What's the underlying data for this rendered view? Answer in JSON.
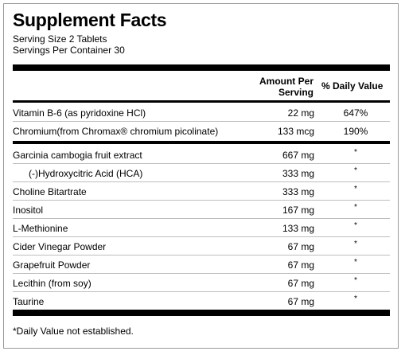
{
  "title": "Supplement Facts",
  "serving_size": "Serving Size 2 Tablets",
  "servings_per_container": "Servings Per Container 30",
  "columns": {
    "amount_line1": "Amount Per",
    "amount_line2": "Serving",
    "daily_value": "% Daily Value"
  },
  "rows": [
    {
      "name": "Vitamin B-6 (as pyridoxine HCl)",
      "amount": "22 mg",
      "dv": "647%"
    },
    {
      "name": "Chromium(from Chromax® chromium picolinate)",
      "amount": "133 mcg",
      "dv": "190%"
    },
    {
      "name": "Garcinia cambogia fruit extract",
      "amount": "667 mg",
      "dv": "*"
    },
    {
      "name": "(-)Hydroxycitric Acid (HCA)",
      "amount": "333 mg",
      "dv": "*"
    },
    {
      "name": "Choline Bitartrate",
      "amount": "333 mg",
      "dv": "*"
    },
    {
      "name": "Inositol",
      "amount": "167 mg",
      "dv": "*"
    },
    {
      "name": "L-Methionine",
      "amount": "133 mg",
      "dv": "*"
    },
    {
      "name": "Cider Vinegar Powder",
      "amount": "67 mg",
      "dv": "*"
    },
    {
      "name": "Grapefruit Powder",
      "amount": "67 mg",
      "dv": "*"
    },
    {
      "name": "Lecithin (from soy)",
      "amount": "67 mg",
      "dv": "*"
    },
    {
      "name": "Taurine",
      "amount": "67 mg",
      "dv": "*"
    }
  ],
  "footnote": "*Daily Value not established."
}
